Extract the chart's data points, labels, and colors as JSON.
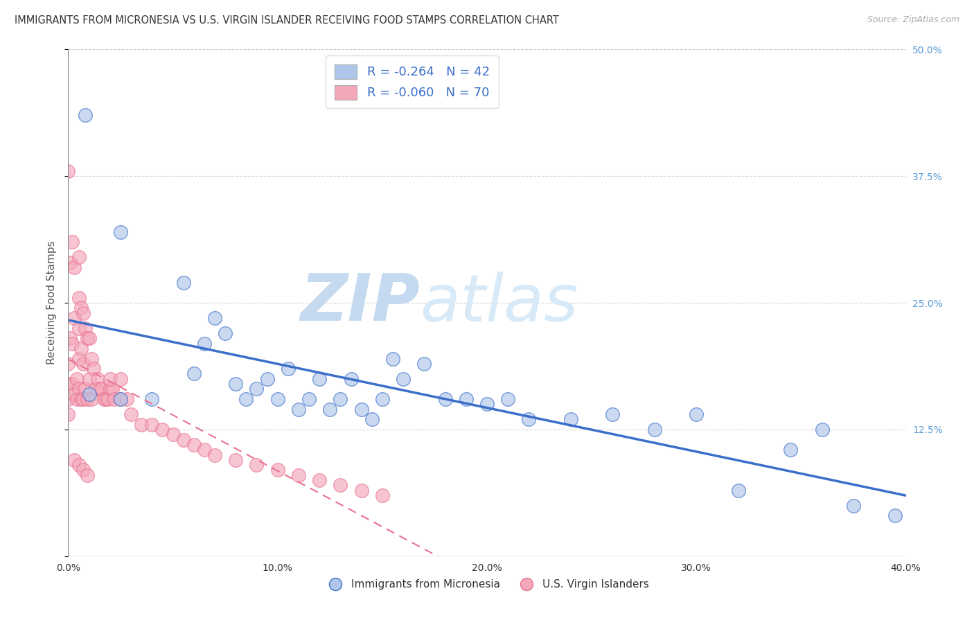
{
  "title": "IMMIGRANTS FROM MICRONESIA VS U.S. VIRGIN ISLANDER RECEIVING FOOD STAMPS CORRELATION CHART",
  "source": "Source: ZipAtlas.com",
  "ylabel": "Receiving Food Stamps",
  "xlim": [
    0.0,
    0.4
  ],
  "ylim": [
    0.0,
    0.5
  ],
  "xticks": [
    0.0,
    0.1,
    0.2,
    0.3,
    0.4
  ],
  "xticklabels": [
    "0.0%",
    "10.0%",
    "20.0%",
    "30.0%",
    "40.0%"
  ],
  "yticks": [
    0.0,
    0.125,
    0.25,
    0.375,
    0.5
  ],
  "yticklabels_right": [
    "",
    "12.5%",
    "25.0%",
    "37.5%",
    "50.0%"
  ],
  "legend1_label": "Immigrants from Micronesia",
  "legend2_label": "U.S. Virgin Islanders",
  "R1": "-0.264",
  "N1": "42",
  "R2": "-0.060",
  "N2": "70",
  "color_blue": "#aec6e8",
  "color_pink": "#f4a7b9",
  "line_blue": "#3b6fca",
  "line_pink": "#e87090",
  "grid_color": "#cccccc",
  "watermark_zip": "ZIP",
  "watermark_atlas": "atlas",
  "watermark_color": "#d0e8f8",
  "title_color": "#333333",
  "tick_color_right": "#5b9bd5",
  "scatter_blue_x": [
    0.008,
    0.01,
    0.025,
    0.025,
    0.04,
    0.055,
    0.06,
    0.065,
    0.07,
    0.075,
    0.08,
    0.085,
    0.09,
    0.095,
    0.1,
    0.105,
    0.11,
    0.115,
    0.12,
    0.125,
    0.13,
    0.135,
    0.14,
    0.145,
    0.15,
    0.155,
    0.16,
    0.17,
    0.18,
    0.19,
    0.2,
    0.21,
    0.22,
    0.24,
    0.26,
    0.28,
    0.3,
    0.32,
    0.345,
    0.36,
    0.375,
    0.395
  ],
  "scatter_blue_y": [
    0.435,
    0.16,
    0.32,
    0.155,
    0.155,
    0.27,
    0.18,
    0.21,
    0.235,
    0.22,
    0.17,
    0.155,
    0.165,
    0.175,
    0.155,
    0.185,
    0.145,
    0.155,
    0.175,
    0.145,
    0.155,
    0.175,
    0.145,
    0.135,
    0.155,
    0.195,
    0.175,
    0.19,
    0.155,
    0.155,
    0.15,
    0.155,
    0.135,
    0.135,
    0.14,
    0.125,
    0.14,
    0.065,
    0.105,
    0.125,
    0.05,
    0.04
  ],
  "scatter_pink_x": [
    0.0,
    0.0,
    0.0,
    0.0,
    0.0,
    0.001,
    0.001,
    0.002,
    0.002,
    0.002,
    0.003,
    0.003,
    0.003,
    0.004,
    0.004,
    0.005,
    0.005,
    0.005,
    0.005,
    0.005,
    0.006,
    0.006,
    0.006,
    0.007,
    0.007,
    0.007,
    0.008,
    0.008,
    0.009,
    0.009,
    0.01,
    0.01,
    0.011,
    0.011,
    0.012,
    0.013,
    0.014,
    0.015,
    0.016,
    0.017,
    0.018,
    0.019,
    0.02,
    0.021,
    0.022,
    0.025,
    0.028,
    0.03,
    0.035,
    0.04,
    0.045,
    0.05,
    0.055,
    0.06,
    0.065,
    0.07,
    0.08,
    0.09,
    0.1,
    0.11,
    0.12,
    0.13,
    0.14,
    0.15,
    0.02,
    0.025,
    0.003,
    0.005,
    0.007,
    0.009
  ],
  "scatter_pink_y": [
    0.38,
    0.19,
    0.17,
    0.155,
    0.14,
    0.29,
    0.215,
    0.31,
    0.21,
    0.17,
    0.285,
    0.235,
    0.16,
    0.175,
    0.155,
    0.295,
    0.255,
    0.225,
    0.195,
    0.165,
    0.245,
    0.205,
    0.155,
    0.24,
    0.19,
    0.155,
    0.225,
    0.165,
    0.215,
    0.155,
    0.215,
    0.175,
    0.195,
    0.155,
    0.185,
    0.165,
    0.175,
    0.165,
    0.165,
    0.155,
    0.155,
    0.155,
    0.165,
    0.165,
    0.155,
    0.155,
    0.155,
    0.14,
    0.13,
    0.13,
    0.125,
    0.12,
    0.115,
    0.11,
    0.105,
    0.1,
    0.095,
    0.09,
    0.085,
    0.08,
    0.075,
    0.07,
    0.065,
    0.06,
    0.175,
    0.175,
    0.095,
    0.09,
    0.085,
    0.08
  ]
}
